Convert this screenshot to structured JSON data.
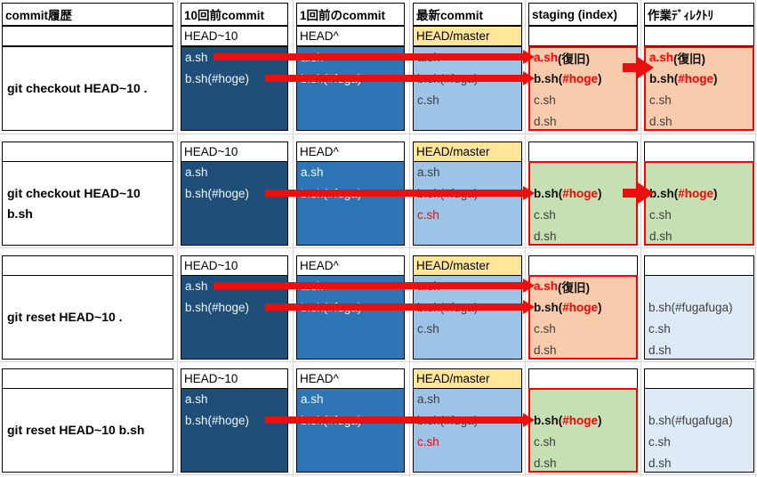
{
  "columns": {
    "history": "commit履歴",
    "old": "10回前commit",
    "prev": "1回前のcommit",
    "latest": "最新commit",
    "staging": "staging (index)",
    "workdir": "作業ﾃﾞｨﾚｸﾄﾘ"
  },
  "ref_labels": {
    "old": "HEAD~10",
    "prev": "HEAD^",
    "latest": "HEAD/master"
  },
  "colors": {
    "dark_blue": "#1F4E79",
    "mid_blue": "#2E75B6",
    "light_blue": "#9DC3E6",
    "pale_blue": "#DEEBF7",
    "peach": "#F8CBAD",
    "green": "#C6E0B4",
    "yellow": "#FFE699",
    "red": "#FF0000",
    "arrow_red": "#EA1010",
    "text_dark": "#3F3F3F",
    "text_light": "#F2F6FA"
  },
  "groups": [
    {
      "command": "git checkout HEAD~10 .",
      "old": {
        "fill": "dark_blue",
        "border": "black",
        "lines": [
          [
            {
              "t": "a.sh",
              "s": "w"
            }
          ],
          [
            {
              "t": "b.sh(#hoge)",
              "s": "w"
            }
          ],
          [],
          []
        ]
      },
      "prev": {
        "fill": "mid_blue",
        "border": "black",
        "lines": [
          [
            {
              "t": "a.sh",
              "s": "w"
            }
          ],
          [
            {
              "t": "b.sh(#fuga)",
              "s": "w"
            }
          ],
          [],
          []
        ]
      },
      "latest": {
        "fill": "light_blue",
        "border": "black",
        "lines": [
          [
            {
              "t": "a.sh",
              "s": "d"
            }
          ],
          [
            {
              "t": "b.sh(#fuga)",
              "s": "d"
            }
          ],
          [
            {
              "t": "c.sh",
              "s": "d"
            }
          ],
          []
        ]
      },
      "staging": {
        "fill": "peach",
        "border": "red",
        "lines": [
          [
            {
              "t": "a.sh",
              "s": "rb"
            },
            {
              "t": "(復旧)",
              "s": "kb"
            }
          ],
          [
            {
              "t": "b.sh(",
              "s": "kb"
            },
            {
              "t": "#hoge",
              "s": "rb"
            },
            {
              "t": ")",
              "s": "kb"
            }
          ],
          [
            {
              "t": "c.sh",
              "s": "d"
            }
          ],
          [
            {
              "t": "d.sh",
              "s": "d"
            }
          ]
        ]
      },
      "workdir": {
        "fill": "peach",
        "border": "red",
        "lines": [
          [
            {
              "t": "a.sh",
              "s": "rb"
            },
            {
              "t": "(復旧)",
              "s": "kb"
            }
          ],
          [
            {
              "t": "b.sh(",
              "s": "kb"
            },
            {
              "t": "#hoge",
              "s": "rb"
            },
            {
              "t": ")",
              "s": "kb"
            }
          ],
          [
            {
              "t": "c.sh",
              "s": "d"
            }
          ],
          [
            {
              "t": "d.sh",
              "s": "d"
            }
          ]
        ]
      },
      "arrows": {
        "long_slots": [
          0,
          1
        ],
        "short_slot": 0.5
      }
    },
    {
      "command": "git checkout HEAD~10 b.sh",
      "old": {
        "fill": "dark_blue",
        "border": "black",
        "lines": [
          [
            {
              "t": "a.sh",
              "s": "w"
            }
          ],
          [
            {
              "t": "b.sh(#hoge)",
              "s": "w"
            }
          ],
          [],
          []
        ]
      },
      "prev": {
        "fill": "mid_blue",
        "border": "black",
        "lines": [
          [
            {
              "t": "a.sh",
              "s": "w"
            }
          ],
          [
            {
              "t": "b.sh(#fuga)",
              "s": "w"
            }
          ],
          [],
          []
        ]
      },
      "latest": {
        "fill": "light_blue",
        "border": "black",
        "lines": [
          [
            {
              "t": "a.sh",
              "s": "d"
            }
          ],
          [
            {
              "t": "b.sh(#fuga)",
              "s": "d"
            }
          ],
          [
            {
              "t": "c.sh",
              "s": "r"
            }
          ],
          []
        ]
      },
      "staging": {
        "fill": "green",
        "border": "red",
        "lines": [
          [],
          [
            {
              "t": "b.sh(",
              "s": "kb"
            },
            {
              "t": "#hoge",
              "s": "rb"
            },
            {
              "t": ")",
              "s": "kb"
            }
          ],
          [
            {
              "t": "c.sh",
              "s": "d"
            }
          ],
          [
            {
              "t": "d.sh",
              "s": "d"
            }
          ]
        ]
      },
      "workdir": {
        "fill": "green",
        "border": "red",
        "lines": [
          [],
          [
            {
              "t": "b.sh(",
              "s": "kb"
            },
            {
              "t": "#hoge",
              "s": "rb"
            },
            {
              "t": ")",
              "s": "kb"
            }
          ],
          [
            {
              "t": "c.sh",
              "s": "d"
            }
          ],
          [
            {
              "t": "d.sh",
              "s": "d"
            }
          ]
        ]
      },
      "arrows": {
        "long_slots": [
          1
        ],
        "short_slot": 1
      }
    },
    {
      "command": "git reset HEAD~10 .",
      "old": {
        "fill": "dark_blue",
        "border": "black",
        "lines": [
          [
            {
              "t": "a.sh",
              "s": "w"
            }
          ],
          [
            {
              "t": "b.sh(#hoge)",
              "s": "w"
            }
          ],
          [],
          []
        ]
      },
      "prev": {
        "fill": "mid_blue",
        "border": "black",
        "lines": [
          [
            {
              "t": "a.sh",
              "s": "w"
            }
          ],
          [
            {
              "t": "b.sh(#fuga)",
              "s": "w"
            }
          ],
          [],
          []
        ]
      },
      "latest": {
        "fill": "light_blue",
        "border": "black",
        "lines": [
          [
            {
              "t": "a.sh",
              "s": "d"
            }
          ],
          [
            {
              "t": "b.sh(#fuga)",
              "s": "d"
            }
          ],
          [
            {
              "t": "c.sh",
              "s": "d"
            }
          ],
          []
        ]
      },
      "staging": {
        "fill": "peach",
        "border": "red",
        "lines": [
          [
            {
              "t": "a.sh",
              "s": "rb"
            },
            {
              "t": "(復旧)",
              "s": "kb"
            }
          ],
          [
            {
              "t": "b.sh(",
              "s": "kb"
            },
            {
              "t": "#hoge",
              "s": "rb"
            },
            {
              "t": ")",
              "s": "kb"
            }
          ],
          [
            {
              "t": "c.sh",
              "s": "d"
            }
          ],
          [
            {
              "t": "d.sh",
              "s": "d"
            }
          ]
        ]
      },
      "workdir": {
        "fill": "pale_blue",
        "border": "black",
        "lines": [
          [],
          [
            {
              "t": "b.sh(#fugafuga)",
              "s": "d"
            }
          ],
          [
            {
              "t": "c.sh",
              "s": "d"
            }
          ],
          [
            {
              "t": "d.sh",
              "s": "d"
            }
          ]
        ]
      },
      "arrows": {
        "long_slots": [
          0,
          1
        ],
        "short_slot": null
      }
    },
    {
      "command": "git reset HEAD~10 b.sh",
      "old": {
        "fill": "dark_blue",
        "border": "black",
        "lines": [
          [
            {
              "t": "a.sh",
              "s": "w"
            }
          ],
          [
            {
              "t": "b.sh(#hoge)",
              "s": "w"
            }
          ],
          [],
          []
        ]
      },
      "prev": {
        "fill": "mid_blue",
        "border": "black",
        "lines": [
          [
            {
              "t": "a.sh",
              "s": "w"
            }
          ],
          [
            {
              "t": "b.sh(#fuga)",
              "s": "w"
            }
          ],
          [],
          []
        ]
      },
      "latest": {
        "fill": "light_blue",
        "border": "black",
        "lines": [
          [
            {
              "t": "a.sh",
              "s": "d"
            }
          ],
          [
            {
              "t": "b.sh(#fuga)",
              "s": "d"
            }
          ],
          [
            {
              "t": "c.sh",
              "s": "r"
            }
          ],
          []
        ]
      },
      "staging": {
        "fill": "green",
        "border": "red",
        "lines": [
          [],
          [
            {
              "t": "b.sh(",
              "s": "kb"
            },
            {
              "t": "#hoge",
              "s": "rb"
            },
            {
              "t": ")",
              "s": "kb"
            }
          ],
          [
            {
              "t": "c.sh",
              "s": "d"
            }
          ],
          [
            {
              "t": "d.sh",
              "s": "d"
            }
          ]
        ]
      },
      "workdir": {
        "fill": "pale_blue",
        "border": "black",
        "lines": [
          [],
          [
            {
              "t": "b.sh(#fugafuga)",
              "s": "d"
            }
          ],
          [
            {
              "t": "c.sh",
              "s": "d"
            }
          ],
          [
            {
              "t": "d.sh",
              "s": "d"
            }
          ]
        ]
      },
      "arrows": {
        "long_slots": [
          1
        ],
        "short_slot": null
      }
    }
  ]
}
